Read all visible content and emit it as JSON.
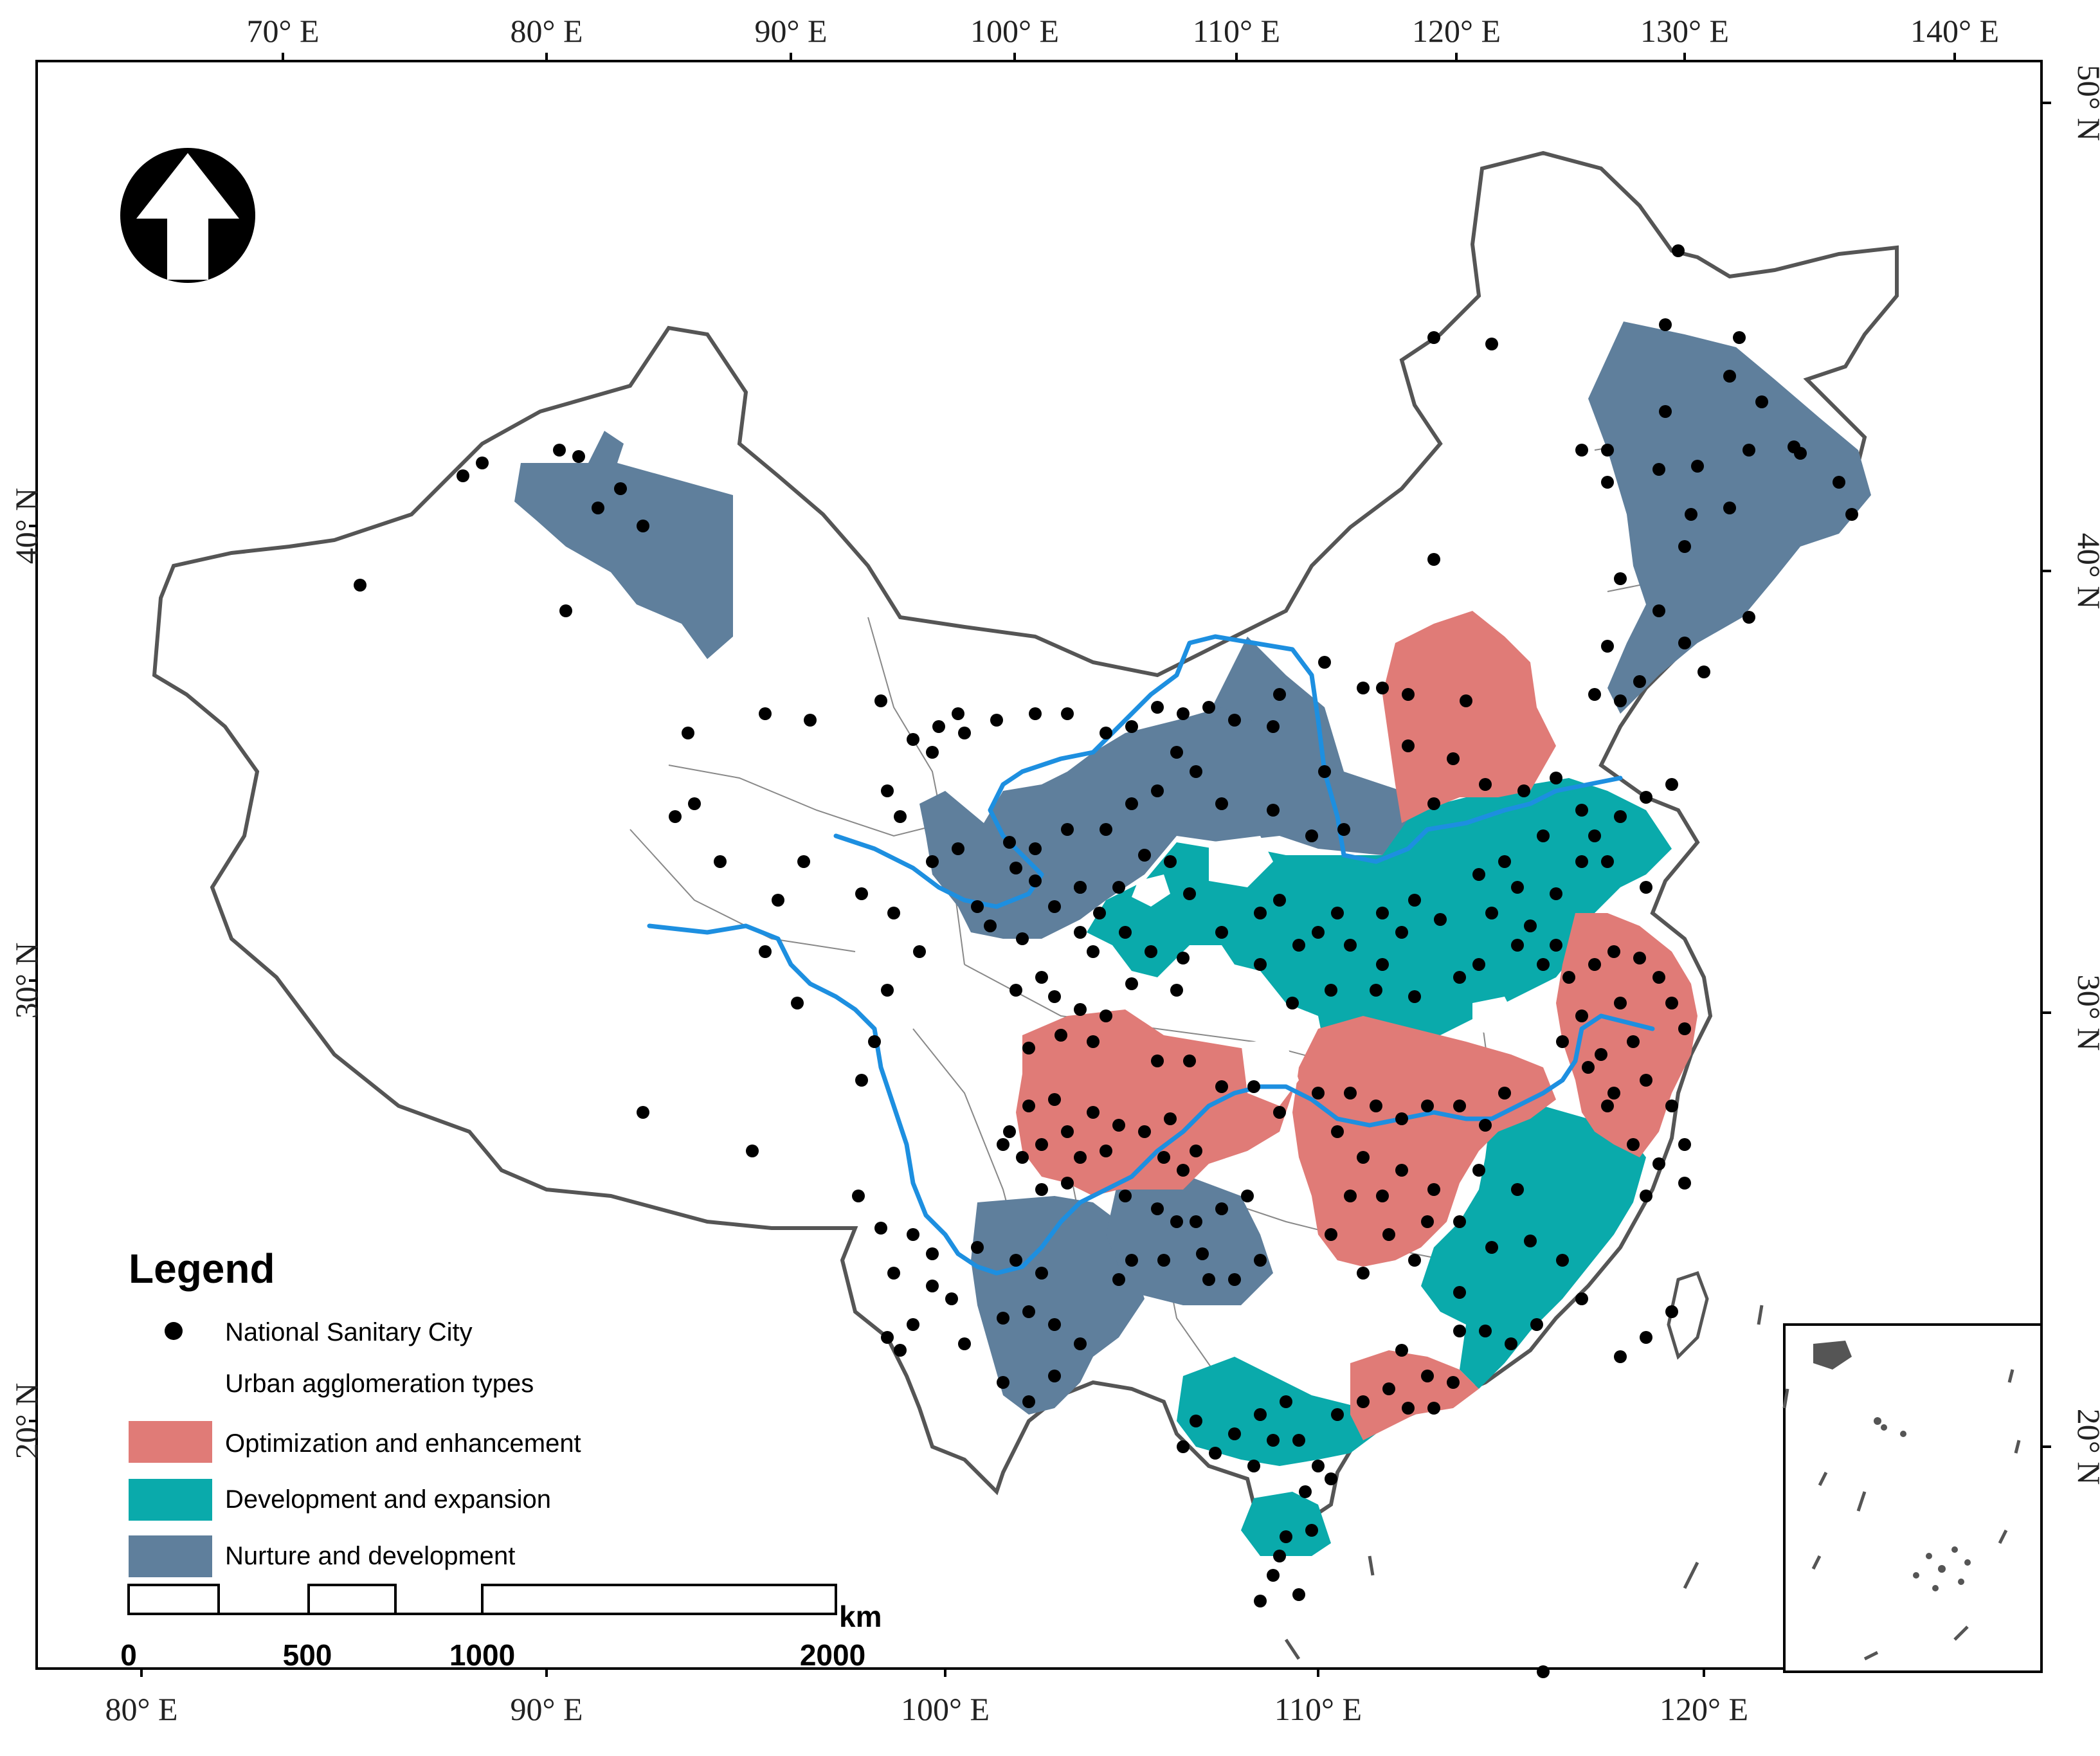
{
  "top_axis_labels": [
    "70° E",
    "80° E",
    "90° E",
    "100° E",
    "110° E",
    "120° E",
    "130° E",
    "140° E"
  ],
  "bottom_axis_labels": [
    "80° E",
    "90° E",
    "100° E",
    "110° E",
    "120° E"
  ],
  "left_axis_labels": [
    "40° N",
    "30° N",
    "20° N"
  ],
  "right_axis_labels": [
    "50° N",
    "40° N",
    "30° N",
    "20° N"
  ],
  "legend": {
    "title": "Legend",
    "city_label": "National Sanitary City",
    "types_label": "Urban agglomeration types",
    "items": [
      {
        "label": "Optimization and enhancement",
        "color": "#e07b77"
      },
      {
        "label": "Development and expansion",
        "color": "#0aaaab"
      },
      {
        "label": "Nurture and development",
        "color": "#5f7f9c"
      }
    ]
  },
  "scale_bar": {
    "ticks": [
      "0",
      "500",
      "1000",
      "2000"
    ],
    "unit": "km"
  },
  "colors": {
    "river": "#1d8fe0",
    "border": "#555555",
    "city": "#000000"
  },
  "icons": [
    "north-arrow-icon"
  ]
}
